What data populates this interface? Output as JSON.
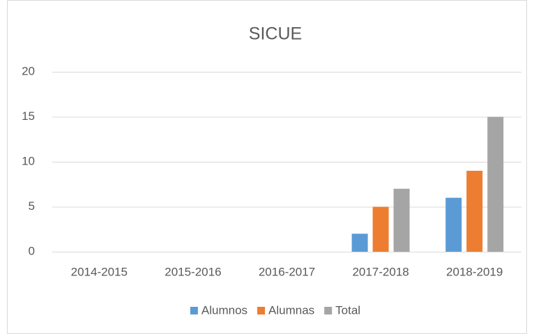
{
  "chart_data": {
    "type": "bar",
    "title": "SICUE",
    "categories": [
      "2014-2015",
      "2015-2016",
      "2016-2017",
      "2017-2018",
      "2018-2019"
    ],
    "series": [
      {
        "name": "Alumnos",
        "color": "#5b9bd5",
        "values": [
          0,
          0,
          0,
          2,
          6
        ]
      },
      {
        "name": "Alumnas",
        "color": "#ed7d31",
        "values": [
          0,
          0,
          0,
          5,
          9
        ]
      },
      {
        "name": "Total",
        "color": "#a5a5a5",
        "values": [
          0,
          0,
          0,
          7,
          15
        ]
      }
    ],
    "ylim": [
      0,
      20
    ],
    "yticks": [
      0,
      5,
      10,
      15,
      20
    ],
    "grid": true,
    "legend": "bottom"
  }
}
